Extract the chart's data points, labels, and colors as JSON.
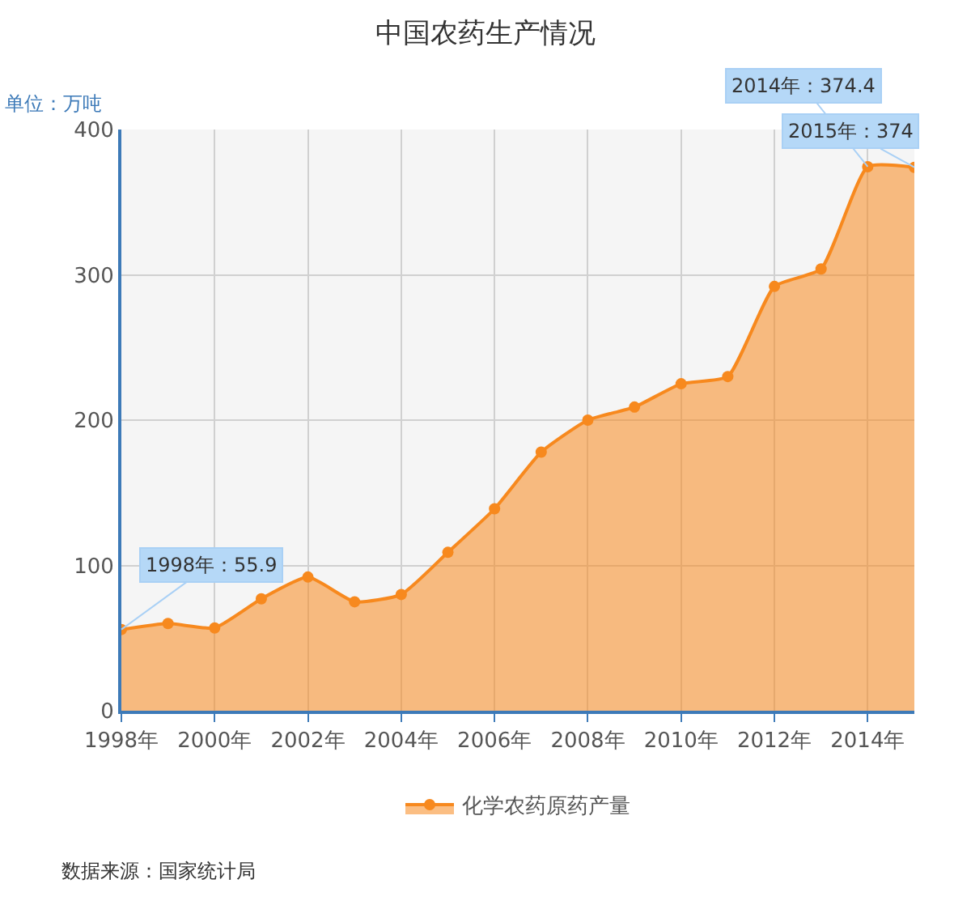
{
  "chart_data": {
    "type": "area",
    "title": "中国农药生产情况",
    "ylabel": "单位：万吨",
    "x": [
      1998,
      1999,
      2000,
      2001,
      2002,
      2003,
      2004,
      2005,
      2006,
      2007,
      2008,
      2009,
      2010,
      2011,
      2012,
      2013,
      2014,
      2015
    ],
    "series": [
      {
        "name": "化学农药原药产量",
        "color": "#f7891e",
        "values": [
          55.9,
          60,
          57,
          77,
          92,
          75,
          80,
          109,
          139,
          178,
          200,
          209,
          225,
          230,
          292,
          304,
          374.4,
          374
        ]
      }
    ],
    "xlim": [
      1998,
      2015
    ],
    "xticks": [
      {
        "value": 1998,
        "label": "1998年"
      },
      {
        "value": 2000,
        "label": "2000年"
      },
      {
        "value": 2002,
        "label": "2002年"
      },
      {
        "value": 2004,
        "label": "2004年"
      },
      {
        "value": 2006,
        "label": "2006年"
      },
      {
        "value": 2008,
        "label": "2008年"
      },
      {
        "value": 2010,
        "label": "2010年"
      },
      {
        "value": 2012,
        "label": "2012年"
      },
      {
        "value": 2014,
        "label": "2014年"
      }
    ],
    "ylim": [
      0,
      400
    ],
    "yticks": [
      0,
      100,
      200,
      300,
      400
    ],
    "grid": true,
    "legend": "bottom",
    "marker": "circle",
    "line_style": "solid",
    "annotations": [
      {
        "text": "1998年：55.9",
        "x": 1998,
        "y": 55.9
      },
      {
        "text": "2014年：374.4",
        "x": 2014,
        "y": 374.4
      },
      {
        "text": "2015年：374",
        "x": 2015,
        "y": 374
      },
      "数据来源：国家统计局"
    ]
  }
}
